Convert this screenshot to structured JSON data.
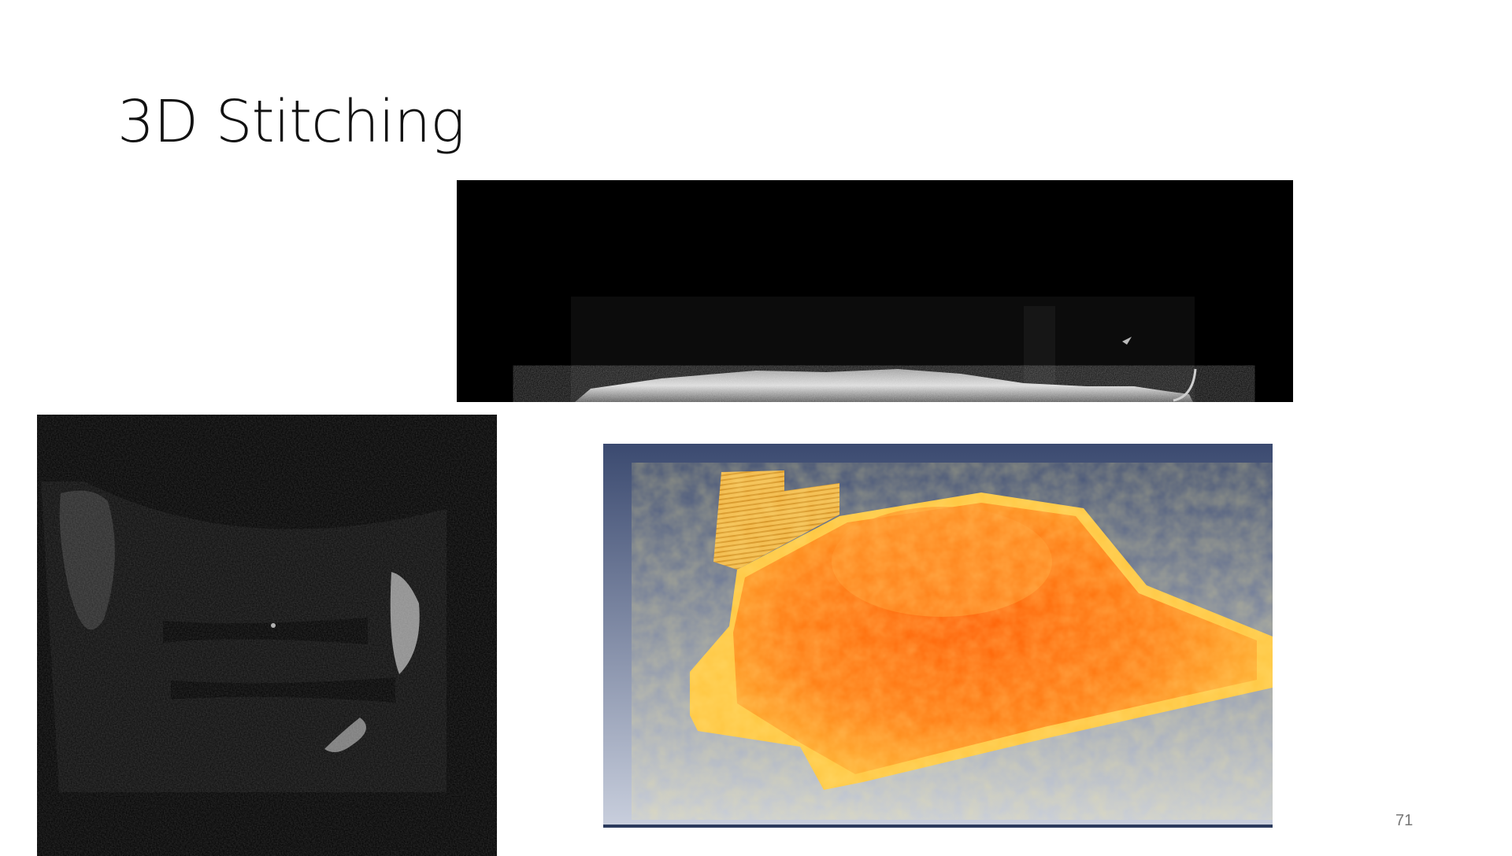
{
  "slide": {
    "title": "3D Stitching",
    "page_number": "71"
  },
  "images": {
    "bscan": {
      "kind": "grayscale OCT cross-section (B-scan)"
    },
    "enface": {
      "kind": "grayscale stitched en-face mosaic"
    },
    "volume": {
      "kind": "orange 3D volume rendering"
    }
  },
  "colors": {
    "background": "#ffffff",
    "title_text": "#111111",
    "page_number_text": "#777777",
    "volume_orange": "#ff6a00",
    "volume_yellow": "#ffc640",
    "volume_bg_top": "#3b4a70",
    "volume_bg_bottom": "#c9cfdd"
  }
}
